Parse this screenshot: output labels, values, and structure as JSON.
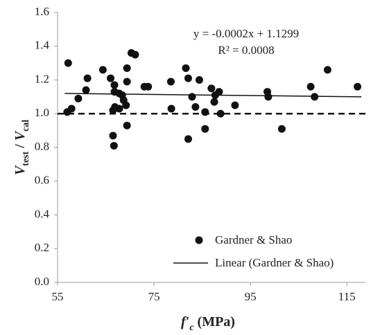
{
  "chart_data": {
    "type": "scatter",
    "xlabel_parts": [
      "f′",
      "c",
      " (MPa)"
    ],
    "ylabel_parts": [
      "V",
      "test",
      " / ",
      "V",
      "cal"
    ],
    "annotations": [
      "y = -0.0002x + 1.1299",
      "R² = 0.0008"
    ],
    "xlim": [
      55,
      120
    ],
    "xticks": [
      55,
      75,
      95,
      115
    ],
    "ylim": [
      0,
      1.6
    ],
    "yticks": [
      {
        "value": 0,
        "label": "0.0"
      },
      0.2,
      0.4,
      0.6,
      0.8,
      {
        "value": 1,
        "label": "1.0"
      },
      1.2,
      1.4,
      1.6
    ],
    "reference_line": {
      "value": 1,
      "color": "#111"
    },
    "series": [
      {
        "name": "Gardner & Shao",
        "color": "#111",
        "x": [
          57.2,
          57.0,
          57.9,
          59.3,
          60.9,
          61.2,
          64.4,
          66.0,
          66.8,
          66.8,
          66.5,
          66.9,
          66.5,
          66.7,
          67.8,
          67.8,
          68.4,
          68.7,
          69.2,
          69.4,
          69.4,
          69.4,
          70.3,
          71.1,
          73.0,
          73.8,
          78.5,
          78.6,
          81.6,
          82.1,
          82.1,
          82.9,
          83.6,
          84.4,
          85.6,
          85.6,
          86.9,
          87.7,
          87.5,
          88.5,
          88.8,
          91.8,
          98.5,
          98.7,
          101.5,
          107.5,
          108.3,
          111.0,
          117.2
        ],
        "values": [
          1.3,
          1.01,
          1.03,
          1.09,
          1.14,
          1.21,
          1.26,
          1.21,
          1.17,
          1.13,
          1.02,
          1.04,
          0.87,
          0.81,
          1.12,
          1.03,
          1.11,
          1.08,
          1.05,
          1.27,
          1.19,
          0.93,
          1.36,
          1.35,
          1.16,
          1.16,
          1.19,
          1.03,
          1.27,
          1.21,
          0.85,
          1.1,
          1.04,
          1.2,
          1.01,
          0.91,
          1.15,
          1.11,
          1.07,
          1.13,
          1.0,
          1.05,
          1.13,
          1.1,
          0.91,
          1.16,
          1.1,
          1.26,
          1.16
        ]
      }
    ],
    "trendline": {
      "name": "Linear (Gardner & Shao)",
      "color": "#111",
      "x": [
        56.5,
        118
      ],
      "values": [
        1.12,
        1.1
      ]
    }
  }
}
